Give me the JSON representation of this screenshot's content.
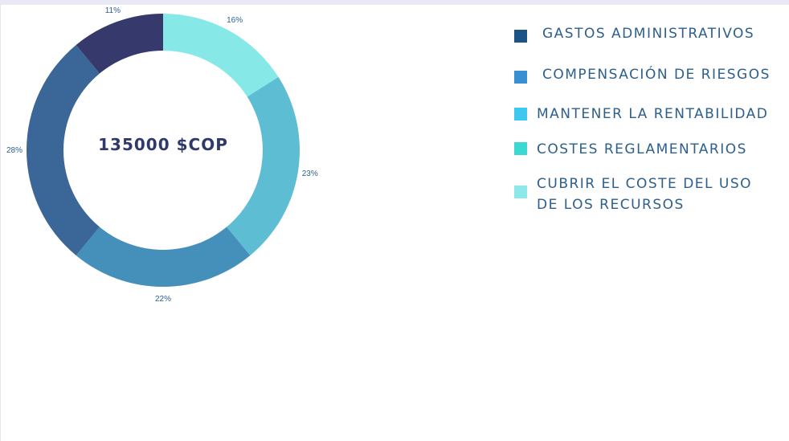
{
  "chart_data": {
    "type": "pie",
    "donut": true,
    "center_text": "135000 $COP",
    "slices": [
      {
        "label": "CUBRIR EL COSTE DEL USO DE LOS RECURSOS",
        "value": 16,
        "display": "16%",
        "color": "#87e8e8"
      },
      {
        "label": "MANTENER LA RENTABILIDAD",
        "value": 23,
        "display": "23%",
        "color": "#5cbdd3"
      },
      {
        "label": "COMPENSACIÓN DE RIESGOS",
        "value": 22,
        "display": "22%",
        "color": "#4490bb"
      },
      {
        "label": "",
        "value": 28,
        "display": "28%",
        "color": "#3b6698"
      },
      {
        "label": "GASTOS ADMINISTRATIVOS",
        "value": 11,
        "display": "11%",
        "color": "#36396c"
      }
    ],
    "label_color": "#2d5f8c"
  },
  "legend": {
    "items": [
      {
        "label": "GASTOS ADMINISTRATIVOS",
        "color": "#1c5585"
      },
      {
        "label": "COMPENSACIÓN DE RIESGOS",
        "color": "#3a8fd2"
      },
      {
        "label": "MANTENER LA RENTABILIDAD",
        "color": "#3ec8ef"
      },
      {
        "label": "COSTES REGLAMENTARIOS",
        "color": "#3bd9d2"
      },
      {
        "label_lines": [
          "CUBRIR EL COSTE DEL USO",
          "DE LOS RECURSOS"
        ],
        "color": "#8de8ea"
      }
    ]
  }
}
